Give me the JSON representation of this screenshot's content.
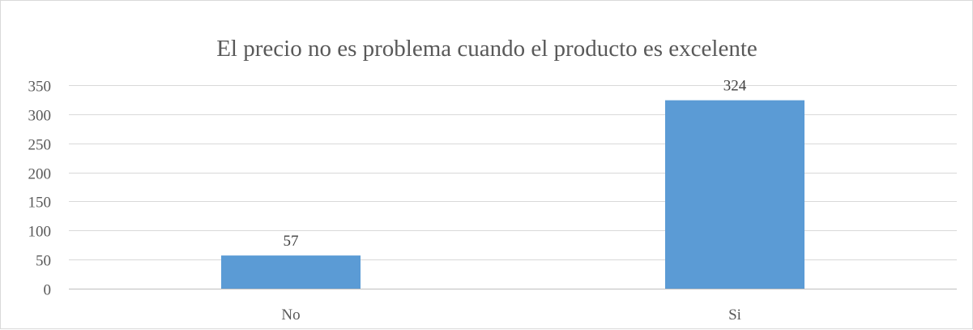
{
  "chart_data": {
    "type": "bar",
    "title": "El precio no es problema cuando el producto es excelente",
    "categories": [
      "No",
      "Si"
    ],
    "values": [
      57,
      324
    ],
    "ylim": [
      0,
      350
    ],
    "yticks": [
      0,
      50,
      100,
      150,
      200,
      250,
      300,
      350
    ],
    "xlabel": "",
    "ylabel": "",
    "grid": true,
    "legend": "none",
    "bar_color": "#5b9bd5",
    "data_labels": true
  }
}
